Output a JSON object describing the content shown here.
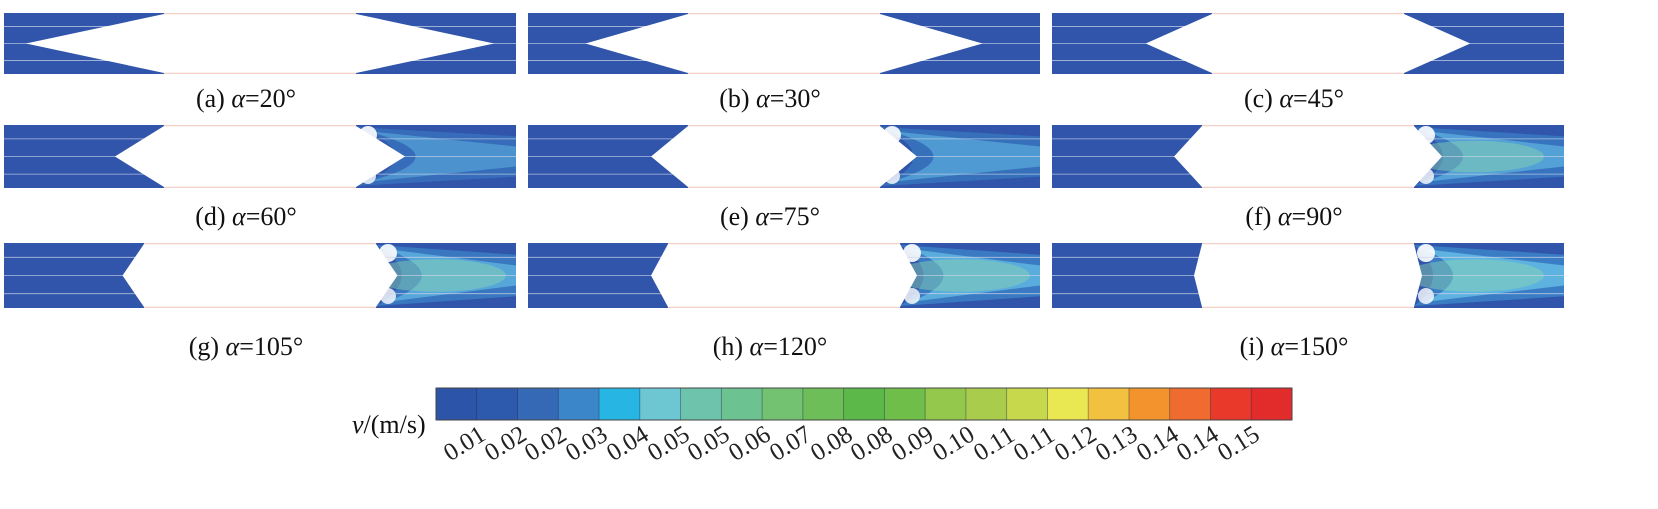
{
  "panels": [
    {
      "id": "a",
      "letter": "(a) ",
      "symbol": "α",
      "value": "=20°",
      "angle": 20
    },
    {
      "id": "b",
      "letter": "(b) ",
      "symbol": "α",
      "value": "=30°",
      "angle": 30
    },
    {
      "id": "c",
      "letter": "(c) ",
      "symbol": "α",
      "value": "=45°",
      "angle": 45
    },
    {
      "id": "d",
      "letter": "(d) ",
      "symbol": "α",
      "value": "=60°",
      "angle": 60
    },
    {
      "id": "e",
      "letter": "(e) ",
      "symbol": "α",
      "value": "=75°",
      "angle": 75
    },
    {
      "id": "f",
      "letter": "(f) ",
      "symbol": "α",
      "value": "=90°",
      "angle": 90
    },
    {
      "id": "g",
      "letter": "(g) ",
      "symbol": "α",
      "value": "=105°",
      "angle": 105
    },
    {
      "id": "h",
      "letter": "(h) ",
      "symbol": "α",
      "value": "=120°",
      "angle": 120
    },
    {
      "id": "i",
      "letter": "(i) ",
      "symbol": "α",
      "value": "=150°",
      "angle": 150
    }
  ],
  "colorbar": {
    "symbol": "v",
    "unit": "/(m/s)",
    "ticks": [
      "0.01",
      "0.02",
      "0.02",
      "0.03",
      "0.04",
      "0.05",
      "0.05",
      "0.06",
      "0.07",
      "0.08",
      "0.08",
      "0.09",
      "0.10",
      "0.11",
      "0.11",
      "0.12",
      "0.13",
      "0.14",
      "0.14",
      "0.15"
    ],
    "colors": [
      "#2c54a8",
      "#2e5aae",
      "#3568b5",
      "#3b86c9",
      "#27b6e3",
      "#6cc7d3",
      "#6dc3ac",
      "#6cc290",
      "#73c272",
      "#6dbe58",
      "#5db84a",
      "#6fbe49",
      "#93c84c",
      "#a9cc4c",
      "#c7d84c",
      "#eae852",
      "#f3c140",
      "#f3932e",
      "#ef6b2f",
      "#e8392b",
      "#e22c2c"
    ]
  },
  "style": {
    "field": "#3055aa",
    "field_dark": "#2a4c9e",
    "streamline": "#cfd8ea",
    "wall": "#f3d0c8",
    "wake_light": "#66bfe6",
    "wake_mid": "#3f8fd0",
    "wake_green": "#8cd6b0",
    "spot": "#ffffff"
  }
}
